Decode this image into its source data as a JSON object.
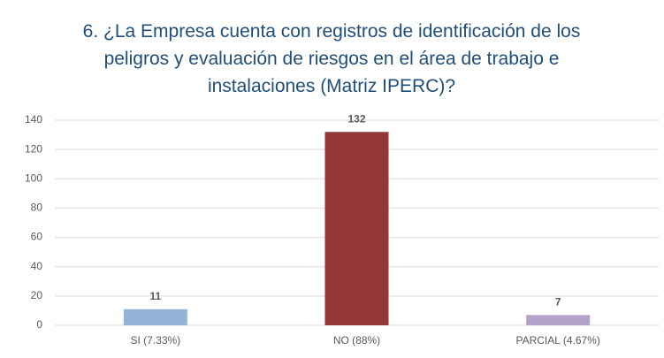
{
  "chart_data": {
    "type": "bar",
    "title": "6. ¿La Empresa cuenta con registros de identificación de los peligros y evaluación de riesgos en el área de trabajo e instalaciones (Matriz IPERC)?",
    "categories": [
      "SI (7.33%)",
      "NO (88%)",
      "PARCIAL (4.67%)"
    ],
    "values": [
      11,
      132,
      7
    ],
    "colors": [
      "#95b3d7",
      "#953735",
      "#b3a2c7"
    ],
    "ylim": [
      0,
      140
    ],
    "yticks": [
      0,
      20,
      40,
      60,
      80,
      100,
      120,
      140
    ],
    "grid": true
  }
}
